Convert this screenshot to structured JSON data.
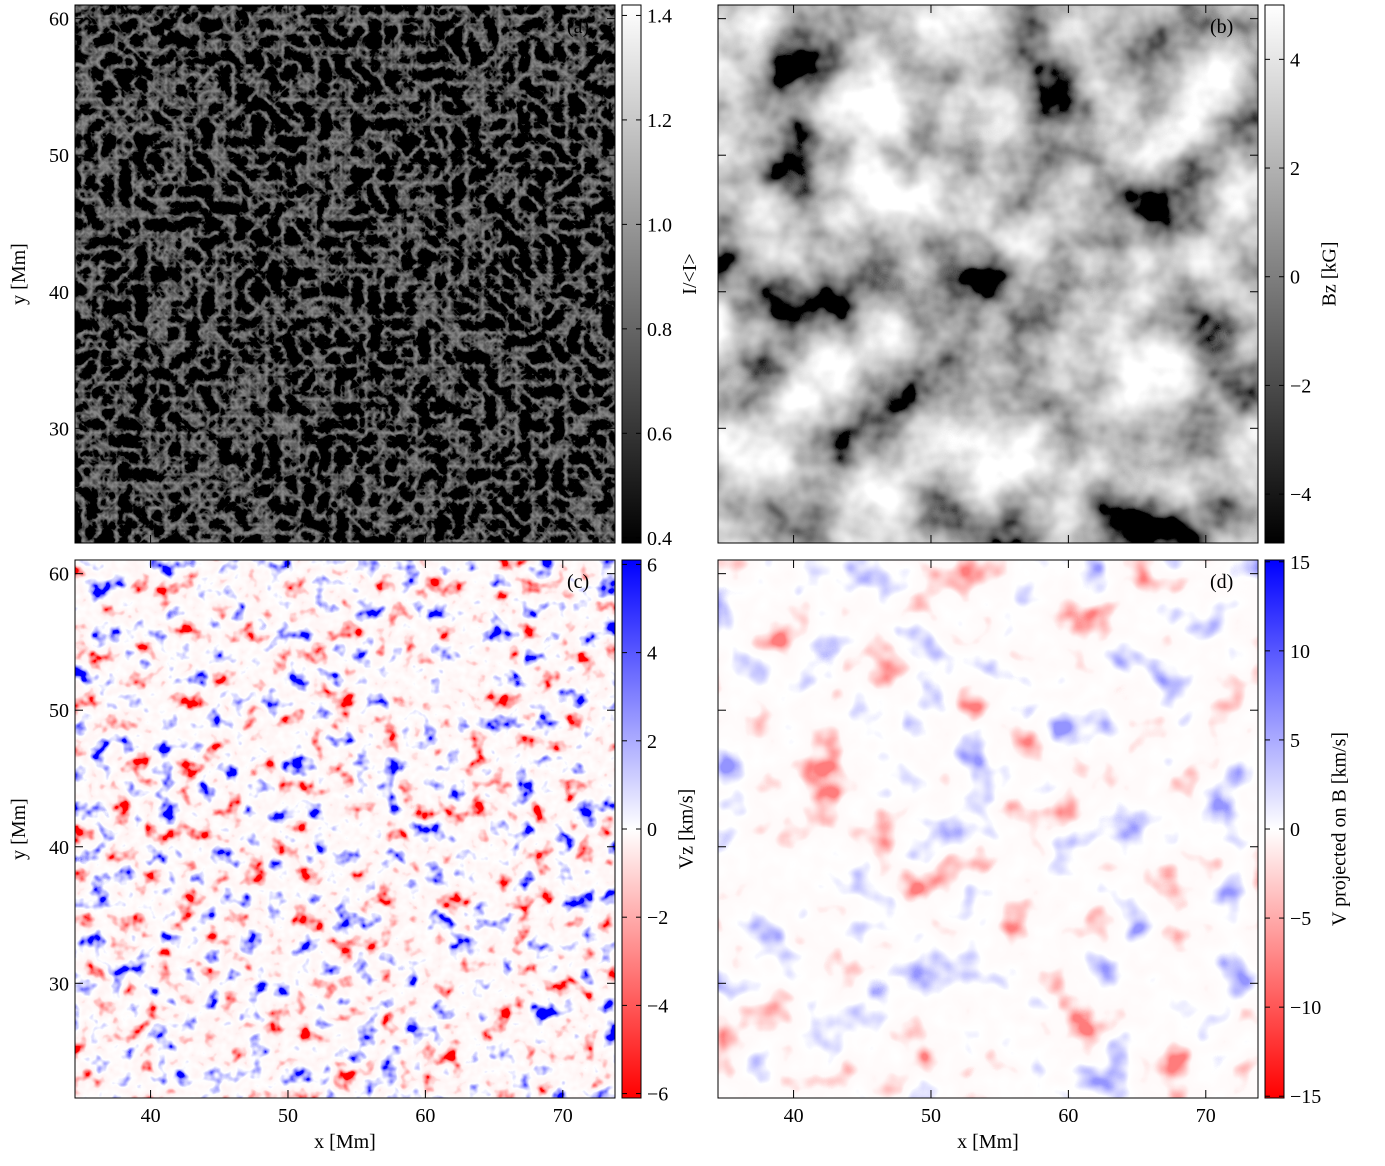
{
  "chart_data": [
    {
      "type": "image",
      "label": "(a)",
      "xlim": [
        34.5,
        73.8
      ],
      "ylim": [
        21.6,
        61.0
      ],
      "xticks": [
        40,
        50,
        60,
        70
      ],
      "yticks": [
        30,
        40,
        50,
        60
      ],
      "ylabel": "y [Mm]",
      "colormap": [
        "#000000",
        "#ffffff"
      ],
      "clim": [
        0.39,
        1.42
      ],
      "cticks": [
        {
          "value": 0.4,
          "label": "0.4"
        },
        {
          "value": 0.6,
          "label": "0.6"
        },
        {
          "value": 0.8,
          "label": "0.8"
        },
        {
          "value": 1.0,
          "label": "1.0"
        },
        {
          "value": 1.2,
          "label": "1.2"
        },
        {
          "value": 1.4,
          "label": "1.4"
        }
      ],
      "colorbar_label": "I/<I>"
    },
    {
      "type": "image",
      "label": "(b)",
      "xlim": [
        34.5,
        73.8
      ],
      "ylim": [
        21.6,
        61.0
      ],
      "xticks": [
        40,
        50,
        60,
        70
      ],
      "yticks": [
        30,
        40,
        50,
        60
      ],
      "colormap": [
        "#000000",
        "#ffffff"
      ],
      "clim": [
        -4.9,
        5.0
      ],
      "cticks": [
        {
          "value": -4,
          "label": "−4"
        },
        {
          "value": -2,
          "label": "−2"
        },
        0,
        2,
        4
      ],
      "colorbar_label": "Bz [kG]"
    },
    {
      "type": "image",
      "label": "(c)",
      "xlim": [
        34.5,
        73.8
      ],
      "ylim": [
        21.6,
        61.0
      ],
      "xticks": [
        40,
        50,
        60,
        70
      ],
      "yticks": [
        30,
        40,
        50,
        60
      ],
      "xlabel": "x [Mm]",
      "ylabel": "y [Mm]",
      "colormap": [
        "#ff0000",
        "#ffffff",
        "#0000ff"
      ],
      "clim": [
        -6.1,
        6.1
      ],
      "cticks": [
        {
          "value": -6,
          "label": "−6"
        },
        {
          "value": -4,
          "label": "−4"
        },
        {
          "value": -2,
          "label": "−2"
        },
        0,
        2,
        4,
        6
      ],
      "colorbar_label": "Vz [km/s]"
    },
    {
      "type": "image",
      "label": "(d)",
      "xlim": [
        34.5,
        73.8
      ],
      "ylim": [
        21.6,
        61.0
      ],
      "xticks": [
        40,
        50,
        60,
        70
      ],
      "yticks": [
        30,
        40,
        50,
        60
      ],
      "xlabel": "x [Mm]",
      "colormap": [
        "#ff0000",
        "#ffffff",
        "#0000ff"
      ],
      "clim": [
        -15.1,
        15.1
      ],
      "cticks": [
        {
          "value": -15,
          "label": "−15"
        },
        {
          "value": -10,
          "label": "−10"
        },
        {
          "value": -5,
          "label": "−5"
        },
        0,
        5,
        10,
        15
      ],
      "colorbar_label": "V projected on B [km/s]"
    }
  ]
}
